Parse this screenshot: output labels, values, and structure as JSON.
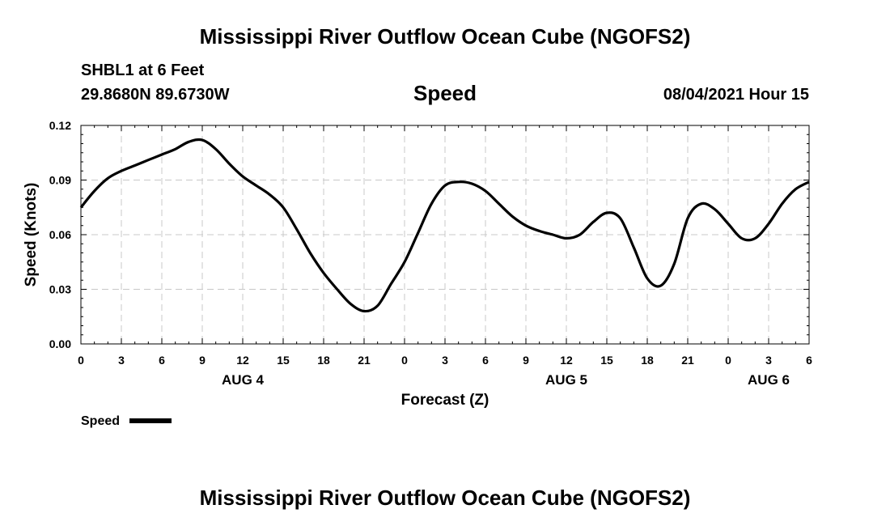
{
  "header": {
    "title": "Mississippi River Outflow Ocean Cube (NGOFS2)",
    "station": "SHBL1 at 6 Feet",
    "coords": "29.8680N  89.6730W",
    "variable": "Speed",
    "datetime": "08/04/2021 Hour 15"
  },
  "footer": {
    "title": "Mississippi River Outflow Ocean Cube (NGOFS2)"
  },
  "chart_data": {
    "type": "line",
    "title": "Speed",
    "xlabel": "Forecast (Z)",
    "ylabel": "Speed (Knots)",
    "xlim": [
      0,
      54
    ],
    "ylim": [
      0,
      0.12
    ],
    "grid": true,
    "legend_position": "bottom-left",
    "x_ticks": [
      0,
      3,
      6,
      9,
      12,
      15,
      18,
      21,
      24,
      27,
      30,
      33,
      36,
      39,
      42,
      45,
      48,
      51,
      54
    ],
    "x_tick_labels": [
      "0",
      "3",
      "6",
      "9",
      "12",
      "15",
      "18",
      "21",
      "0",
      "3",
      "6",
      "9",
      "12",
      "15",
      "18",
      "21",
      "0",
      "3",
      "6"
    ],
    "y_ticks": [
      0,
      0.03,
      0.06,
      0.09,
      0.12
    ],
    "y_tick_labels": [
      "0.00",
      "0.03",
      "0.06",
      "0.09",
      "0.12"
    ],
    "date_labels": [
      {
        "x": 12,
        "label": "AUG 4"
      },
      {
        "x": 36,
        "label": "AUG 5"
      },
      {
        "x": 51,
        "label": "AUG 6"
      }
    ],
    "series": [
      {
        "name": "Speed",
        "color": "#000000",
        "x": [
          0,
          1,
          2,
          3,
          4,
          5,
          6,
          7,
          8,
          9,
          10,
          11,
          12,
          13,
          14,
          15,
          16,
          17,
          18,
          19,
          20,
          21,
          22,
          23,
          24,
          25,
          26,
          27,
          28,
          29,
          30,
          31,
          32,
          33,
          34,
          35,
          36,
          37,
          38,
          39,
          40,
          41,
          42,
          43,
          44,
          45,
          46,
          47,
          48,
          49,
          50,
          51,
          52,
          53,
          54
        ],
        "y": [
          0.075,
          0.084,
          0.091,
          0.095,
          0.098,
          0.101,
          0.104,
          0.107,
          0.111,
          0.112,
          0.107,
          0.099,
          0.092,
          0.087,
          0.082,
          0.075,
          0.063,
          0.05,
          0.039,
          0.03,
          0.022,
          0.018,
          0.021,
          0.033,
          0.045,
          0.061,
          0.077,
          0.087,
          0.089,
          0.088,
          0.084,
          0.077,
          0.07,
          0.065,
          0.062,
          0.06,
          0.058,
          0.06,
          0.067,
          0.072,
          0.069,
          0.053,
          0.036,
          0.032,
          0.044,
          0.069,
          0.077,
          0.074,
          0.066,
          0.058,
          0.058,
          0.066,
          0.077,
          0.085,
          0.089
        ]
      }
    ]
  }
}
